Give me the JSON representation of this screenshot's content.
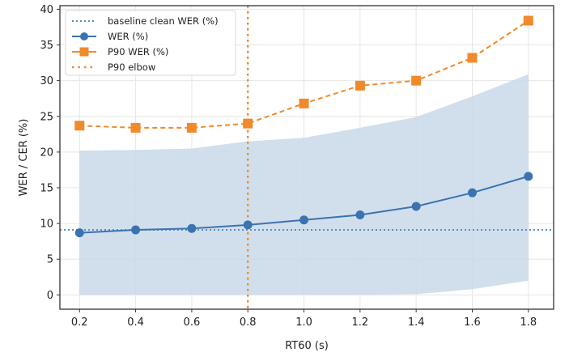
{
  "chart_data": {
    "type": "line",
    "title": "",
    "xlabel": "RT60 (s)",
    "ylabel": "WER / CER (%)",
    "x": [
      0.2,
      0.4,
      0.6,
      0.8,
      1.0,
      1.2,
      1.4,
      1.6,
      1.8
    ],
    "xticks": [
      "0.2",
      "0.4",
      "0.6",
      "0.8",
      "1.0",
      "1.2",
      "1.4",
      "1.6",
      "1.8"
    ],
    "yticks": [
      "0",
      "5",
      "10",
      "15",
      "20",
      "25",
      "30",
      "35",
      "40"
    ],
    "xlim": [
      0.13,
      1.89
    ],
    "ylim": [
      -2,
      40.5
    ],
    "grid": true,
    "legend_position": "top-left",
    "series": [
      {
        "name": "WER (%)",
        "style": "solid-circle",
        "color": "#3b73b0",
        "values": [
          8.7,
          9.1,
          9.3,
          9.8,
          10.5,
          11.2,
          12.4,
          14.3,
          16.6
        ]
      },
      {
        "name": "P90 WER (%)",
        "style": "dashed-square",
        "color": "#f08a2a",
        "values": [
          23.7,
          23.4,
          23.4,
          24.0,
          26.8,
          29.3,
          30.0,
          33.2,
          38.4
        ]
      }
    ],
    "band": {
      "color": "#c9d9ea",
      "lower": [
        0.0,
        0.0,
        0.0,
        0.0,
        0.0,
        0.0,
        0.1,
        0.8,
        2.0
      ],
      "upper": [
        20.2,
        20.3,
        20.5,
        21.5,
        22.0,
        23.4,
        24.9,
        27.8,
        30.9
      ]
    },
    "reference_lines": [
      {
        "name": "baseline clean WER (%)",
        "orientation": "horizontal",
        "value": 9.1,
        "color": "#5a8fc4",
        "style": "dotted"
      },
      {
        "name": "P90 elbow",
        "orientation": "vertical",
        "value": 0.8,
        "color": "#f08a2a",
        "style": "dotted"
      }
    ],
    "legend": [
      "baseline clean WER (%)",
      "WER (%)",
      "P90 WER (%)",
      "P90 elbow"
    ]
  }
}
